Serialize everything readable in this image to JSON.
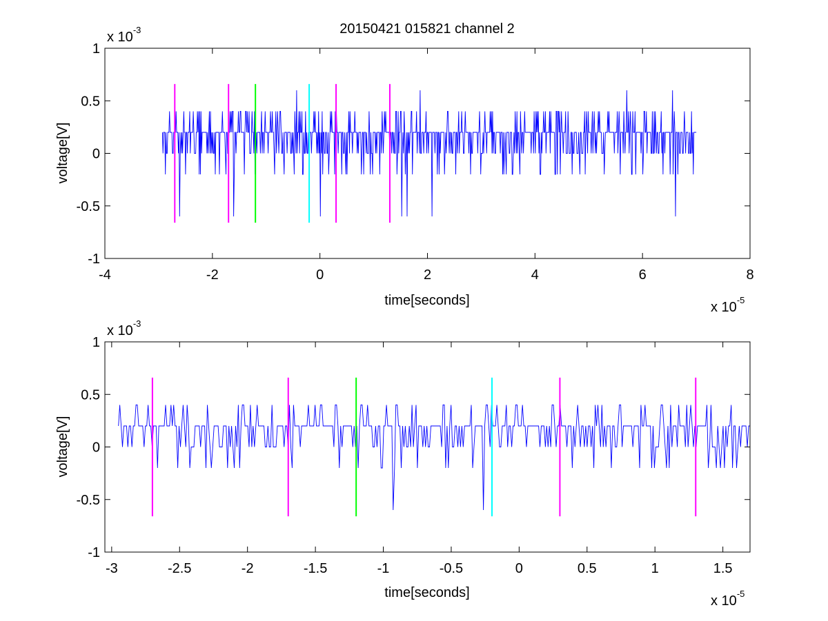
{
  "chart_data": [
    {
      "type": "line",
      "title": "20150421 015821 channel 2",
      "xlabel": "time[seconds]",
      "ylabel": "voltage[V]",
      "x_exponent_label": "x 10",
      "x_exponent": "-5",
      "y_exponent_label": "x 10",
      "y_exponent": "-3",
      "xlim": [
        -4,
        8
      ],
      "ylim": [
        -1,
        1
      ],
      "x_ticks": [
        -4,
        -2,
        0,
        2,
        4,
        6,
        8
      ],
      "x_tick_labels": [
        "-4",
        "-2",
        "0",
        "2",
        "4",
        "6",
        "8"
      ],
      "y_ticks": [
        -1,
        -0.5,
        0,
        0.5,
        1
      ],
      "y_tick_labels": [
        "-1",
        "-0.5",
        "0",
        "0.5",
        "1"
      ],
      "grid": false,
      "series": [
        {
          "color": "#0000ff",
          "x_start": -2.93,
          "x_end": 7.0,
          "samples": 900,
          "seed": 7,
          "y_min": -0.6,
          "y_max": 0.6
        }
      ],
      "vertical_markers": [
        {
          "x": -2.7,
          "color": "#ff00ff",
          "y_range": [
            -0.66,
            0.66
          ]
        },
        {
          "x": -1.7,
          "color": "#ff00ff",
          "y_range": [
            -0.66,
            0.66
          ]
        },
        {
          "x": -1.2,
          "color": "#00ff00",
          "y_range": [
            -0.66,
            0.66
          ]
        },
        {
          "x": -0.2,
          "color": "#00ffff",
          "y_range": [
            -0.66,
            0.66
          ]
        },
        {
          "x": 0.3,
          "color": "#ff00ff",
          "y_range": [
            -0.66,
            0.66
          ]
        },
        {
          "x": 1.3,
          "color": "#ff00ff",
          "y_range": [
            -0.66,
            0.66
          ]
        }
      ]
    },
    {
      "type": "line",
      "title": "",
      "xlabel": "time[seconds]",
      "ylabel": "voltage[V]",
      "x_exponent_label": "x 10",
      "x_exponent": "-5",
      "y_exponent_label": "x 10",
      "y_exponent": "-3",
      "xlim": [
        -3.05,
        1.7
      ],
      "ylim": [
        -1,
        1
      ],
      "x_ticks": [
        -3,
        -2.5,
        -2,
        -1.5,
        -1,
        -0.5,
        0,
        0.5,
        1,
        1.5
      ],
      "x_tick_labels": [
        "-3",
        "-2.5",
        "-2",
        "-1.5",
        "-1",
        "-0.5",
        "0",
        "0.5",
        "1",
        "1.5"
      ],
      "y_ticks": [
        -1,
        -0.5,
        0,
        0.5,
        1
      ],
      "y_tick_labels": [
        "-1",
        "-0.5",
        "0",
        "0.5",
        "1"
      ],
      "grid": false,
      "series": [
        {
          "color": "#0000ff",
          "x_start": -2.95,
          "x_end": 1.7,
          "samples": 470,
          "seed": 3,
          "y_min": -0.6,
          "y_max": 0.4
        }
      ],
      "vertical_markers": [
        {
          "x": -2.7,
          "color": "#ff00ff",
          "y_range": [
            -0.66,
            0.66
          ]
        },
        {
          "x": -1.7,
          "color": "#ff00ff",
          "y_range": [
            -0.66,
            0.66
          ]
        },
        {
          "x": -1.2,
          "color": "#00ff00",
          "y_range": [
            -0.66,
            0.66
          ]
        },
        {
          "x": -0.2,
          "color": "#00ffff",
          "y_range": [
            -0.66,
            0.66
          ]
        },
        {
          "x": 0.3,
          "color": "#ff00ff",
          "y_range": [
            -0.66,
            0.66
          ]
        },
        {
          "x": 1.3,
          "color": "#ff00ff",
          "y_range": [
            -0.66,
            0.66
          ]
        }
      ]
    }
  ]
}
